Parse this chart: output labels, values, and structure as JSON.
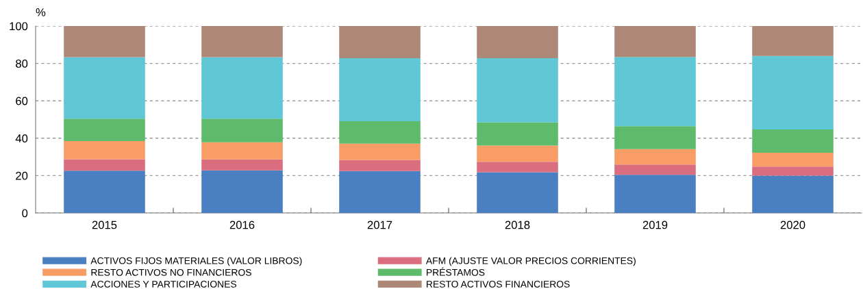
{
  "chart_data": {
    "type": "bar",
    "stacked": true,
    "ylabel": "%",
    "categories": [
      "2015",
      "2016",
      "2017",
      "2018",
      "2019",
      "2020"
    ],
    "series": [
      {
        "name": "ACTIVOS FIJOS MATERIALES (VALOR LIBROS)",
        "color": "#4a7fc1",
        "values": [
          22.6,
          22.8,
          22.4,
          21.8,
          20.4,
          20.0
        ]
      },
      {
        "name": "AFM (AJUSTE VALOR PRECIOS CORRIENTES)",
        "color": "#da6e7e",
        "values": [
          6.2,
          5.9,
          6.0,
          5.6,
          5.5,
          4.8
        ]
      },
      {
        "name": "RESTO ACTIVOS NO FINANCIEROS",
        "color": "#f79d65",
        "values": [
          9.7,
          9.1,
          8.7,
          8.7,
          8.3,
          7.4
        ]
      },
      {
        "name": "PRÉSTAMOS",
        "color": "#5dbb6b",
        "values": [
          12.0,
          12.7,
          12.0,
          12.3,
          12.2,
          12.5
        ]
      },
      {
        "name": "ACCIONES Y PARTICIPACIONES",
        "color": "#5fc7d5",
        "values": [
          32.8,
          32.8,
          33.7,
          34.4,
          37.0,
          39.3
        ]
      },
      {
        "name": "RESTO ACTIVOS FINANCIEROS",
        "color": "#ae8876",
        "values": [
          16.7,
          16.7,
          17.2,
          17.2,
          16.6,
          16.0
        ]
      }
    ],
    "ylim": [
      0,
      100
    ],
    "yticks": [
      0,
      20,
      40,
      60,
      80,
      100
    ],
    "grid": "y",
    "legend": "bottom"
  }
}
